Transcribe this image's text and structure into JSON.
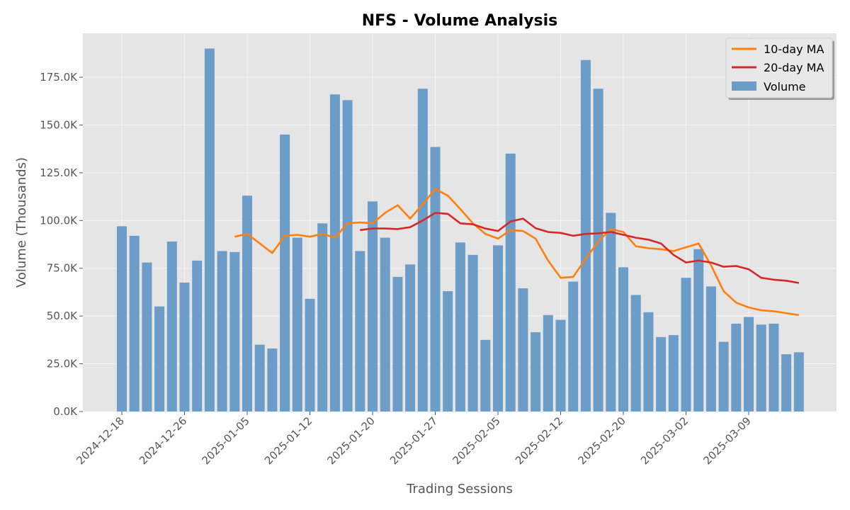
{
  "chart_data": {
    "type": "bar",
    "title": "NFS - Volume Analysis",
    "xlabel": "Trading Sessions",
    "ylabel": "Volume (Thousands)",
    "ylim": [
      0,
      198000
    ],
    "y_ticks": [
      0,
      25000,
      50000,
      75000,
      100000,
      125000,
      150000,
      175000
    ],
    "y_tick_labels": [
      "0.0K",
      "25.0K",
      "50.0K",
      "75.0K",
      "100.0K",
      "125.0K",
      "150.0K",
      "175.0K"
    ],
    "x_tick_labels": [
      "2024-12-18",
      "2024-12-26",
      "2025-01-05",
      "2025-01-12",
      "2025-01-20",
      "2025-01-27",
      "2025-02-05",
      "2025-02-12",
      "2025-02-20",
      "2025-03-02",
      "2025-03-09"
    ],
    "x_tick_every": 5,
    "grid": true,
    "legend_position": "top-right",
    "colors": {
      "volume": "#6b9dc8",
      "ma10": "#ff7f0e",
      "ma20": "#d62728",
      "plot_bg": "#e5e5e5",
      "grid": "#f5f5f5"
    },
    "series": [
      {
        "name": "Volume",
        "kind": "bar",
        "values": [
          97000,
          92000,
          78000,
          55000,
          89000,
          67500,
          79000,
          190000,
          84000,
          83500,
          113000,
          35000,
          33000,
          145000,
          91000,
          59000,
          98500,
          166000,
          163000,
          84000,
          110000,
          91000,
          70500,
          77000,
          169000,
          138500,
          63000,
          88500,
          82000,
          37500,
          87000,
          135000,
          64500,
          41500,
          50500,
          48000,
          68000,
          184000,
          169000,
          104000,
          75500,
          61000,
          52000,
          39000,
          40000,
          70000,
          85000,
          65500,
          36500,
          46000,
          49500,
          45500,
          46000,
          30000,
          31000
        ]
      },
      {
        "name": "10-day MA",
        "kind": "line",
        "values": [
          null,
          null,
          null,
          null,
          null,
          null,
          null,
          null,
          null,
          91500,
          93000,
          88000,
          83000,
          92000,
          92500,
          91500,
          93000,
          91000,
          98500,
          99000,
          98500,
          104000,
          108000,
          101000,
          108500,
          116500,
          113000,
          106000,
          98500,
          93000,
          90500,
          95000,
          94500,
          90500,
          79000,
          70000,
          70500,
          80000,
          89000,
          95500,
          94000,
          86500,
          85500,
          85000,
          84000,
          86000,
          88000,
          76500,
          63000,
          57000,
          54500,
          53000,
          52500,
          51500,
          50500
        ]
      },
      {
        "name": "20-day MA",
        "kind": "line",
        "values": [
          null,
          null,
          null,
          null,
          null,
          null,
          null,
          null,
          null,
          null,
          null,
          null,
          null,
          null,
          null,
          null,
          null,
          null,
          null,
          95000,
          95800,
          95800,
          95500,
          96500,
          100000,
          104000,
          103500,
          98500,
          98000,
          95800,
          94500,
          99500,
          101000,
          96000,
          94000,
          93500,
          92000,
          93000,
          93300,
          94000,
          92500,
          91000,
          90000,
          88000,
          82000,
          78000,
          79000,
          78000,
          75800,
          76200,
          74500,
          70000,
          69000,
          68500,
          67300
        ]
      }
    ]
  }
}
